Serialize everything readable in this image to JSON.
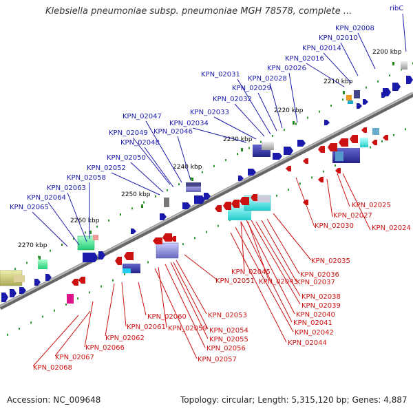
{
  "title": "Klebsiella pneumoniae subsp. pneumoniae MGH 78578, complete ...",
  "footer": {
    "accession": "Accession: NC_009648",
    "topology": "Topology: circular; Length: 5,315,120 bp; Genes: 4,887"
  },
  "colors": {
    "forward_gene": "#1a1aaa",
    "reverse_gene": "#cc1111",
    "backbone": "#8a8a8a",
    "tick": "#228822"
  },
  "ticks": [
    "2200 kbp",
    "2210 kbp",
    "2220 kbp",
    "2230 kbp",
    "2240 kbp",
    "2250 kbp",
    "2260 kbp",
    "2270 kbp"
  ],
  "genes_forward": [
    "ribC",
    "KPN_02008",
    "KPN_02010",
    "KPN_02014",
    "KPN_02016",
    "KPN_02026",
    "KPN_02028",
    "KPN_02029",
    "KPN_02031",
    "KPN_02032",
    "KPN_02033",
    "KPN_02034",
    "KPN_02046",
    "KPN_02047",
    "KPN_02048",
    "KPN_02049",
    "KPN_02050",
    "KPN_02052",
    "KPN_02058",
    "KPN_02063",
    "KPN_02064",
    "KPN_02065"
  ],
  "genes_reverse": [
    "KPN_02025",
    "KPN_02027",
    "KPN_02024",
    "KPN_02030",
    "KPN_02035",
    "KPN_02036",
    "KPN_02037",
    "KPN_02038",
    "KPN_02039",
    "KPN_02040",
    "KPN_02041",
    "KPN_02042",
    "KPN_02044",
    "KPN_02045",
    "KPN_02043",
    "KPN_02051",
    "KPN_02053",
    "KPN_02054",
    "KPN_02055",
    "KPN_02056",
    "KPN_02057",
    "KPN_02059",
    "KPN_02060",
    "KPN_02061",
    "KPN_02062",
    "KPN_02066",
    "KPN_02067",
    "KPN_02068"
  ]
}
